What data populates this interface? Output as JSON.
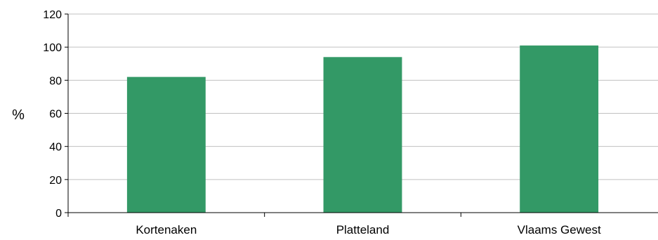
{
  "chart_data": {
    "type": "bar",
    "categories": [
      "Kortenaken",
      "Platteland",
      "Vlaams Gewest"
    ],
    "values": [
      82,
      94,
      101
    ],
    "title": "",
    "xlabel": "",
    "ylabel": "%",
    "ylim": [
      0,
      120
    ],
    "yticks": [
      "0",
      "20",
      "40",
      "60",
      "80",
      "100",
      "120"
    ],
    "grid": true,
    "legend": "none",
    "bar_color": "#339966",
    "grid_color": "#c0c0c0",
    "axis_color": "#000000"
  }
}
